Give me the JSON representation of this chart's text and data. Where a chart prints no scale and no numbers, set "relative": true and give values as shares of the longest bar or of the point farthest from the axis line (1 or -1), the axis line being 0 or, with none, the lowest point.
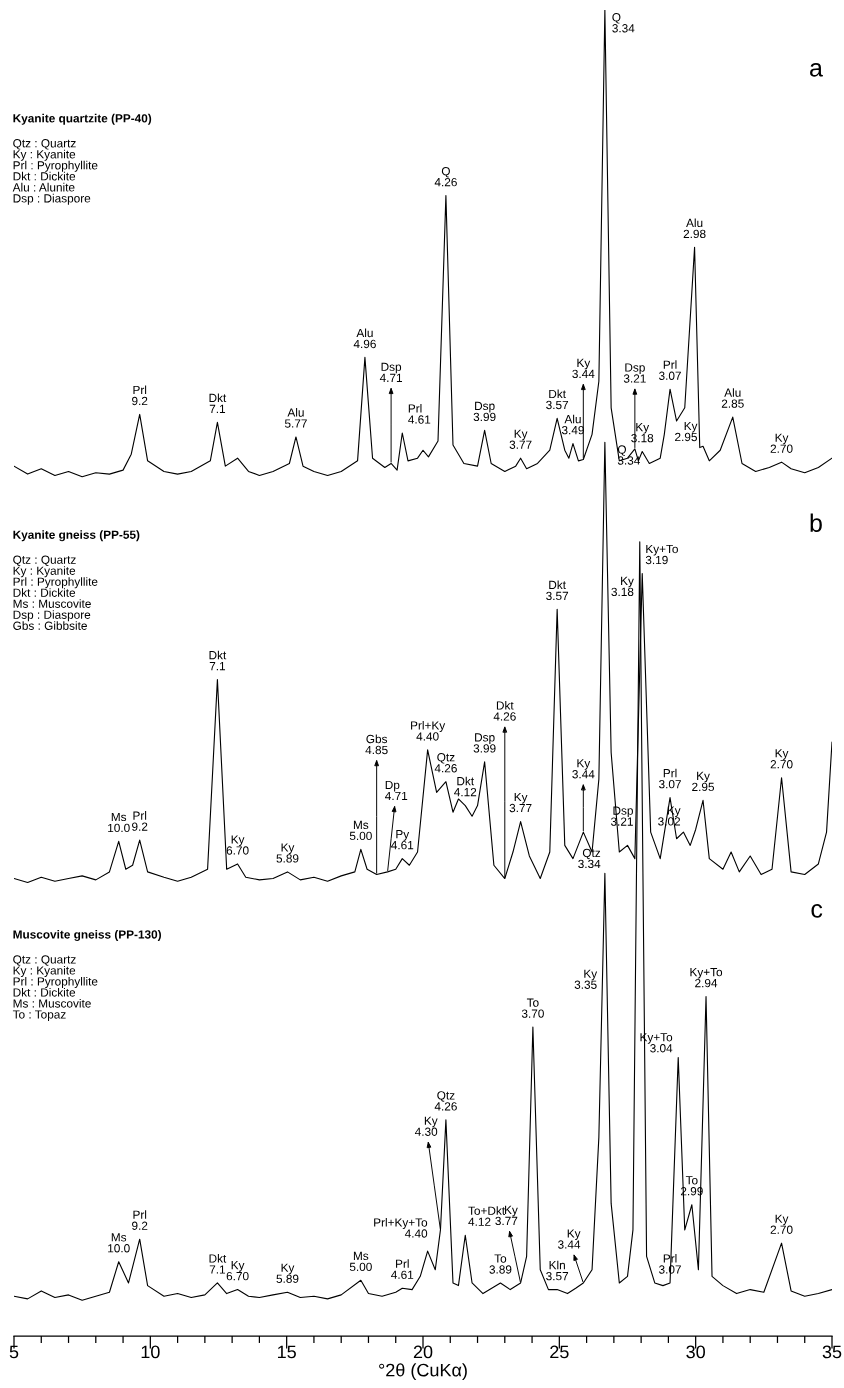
{
  "chart_data": {
    "type": "line",
    "relative": true,
    "xlabel": "°2θ (CuKα)",
    "xlim": [
      5,
      35
    ],
    "xticks": [
      5,
      {
        "value": 6,
        "label": null
      },
      {
        "value": 7,
        "label": null
      },
      {
        "value": 8,
        "label": null
      },
      {
        "value": 9,
        "label": null
      },
      10,
      {
        "value": 11,
        "label": null
      },
      {
        "value": 12,
        "label": null
      },
      {
        "value": 13,
        "label": null
      },
      {
        "value": 14,
        "label": null
      },
      15,
      {
        "value": 16,
        "label": null
      },
      {
        "value": 17,
        "label": null
      },
      {
        "value": 18,
        "label": null
      },
      {
        "value": 19,
        "label": null
      },
      20,
      {
        "value": 21,
        "label": null
      },
      {
        "value": 22,
        "label": null
      },
      {
        "value": 23,
        "label": null
      },
      {
        "value": 24,
        "label": null
      },
      25,
      {
        "value": 26,
        "label": null
      },
      {
        "value": 27,
        "label": null
      },
      {
        "value": 28,
        "label": null
      },
      {
        "value": 29,
        "label": null
      },
      30,
      {
        "value": 31,
        "label": null
      },
      {
        "value": 32,
        "label": null
      },
      {
        "value": 33,
        "label": null
      },
      {
        "value": 34,
        "label": null
      },
      35
    ],
    "series": [
      {
        "color": "#000000",
        "x": [
          5,
          5.5,
          6,
          6.5,
          7,
          7.5,
          8,
          8.5,
          9,
          9.3,
          9.61,
          9.9,
          10.5,
          11,
          11.5,
          12.2,
          12.46,
          12.75,
          13.2,
          13.6,
          14,
          14.5,
          15.1,
          15.34,
          15.6,
          16,
          16.5,
          17,
          17.6,
          17.87,
          18.15,
          18.6,
          18.83,
          19.05,
          19.24,
          19.45,
          19.8,
          20.0,
          20.2,
          20.55,
          20.84,
          21.1,
          21.5,
          22.0,
          22.26,
          22.5,
          23,
          23.4,
          23.58,
          23.8,
          24.2,
          24.65,
          24.92,
          25.2,
          25.35,
          25.5,
          25.7,
          25.88,
          26.2,
          26.45,
          26.67,
          26.9,
          27.2,
          27.5,
          27.77,
          27.9,
          28.04,
          28.3,
          28.7,
          28.85,
          29.06,
          29.3,
          29.6,
          29.96,
          30.15,
          30.27,
          30.5,
          30.9,
          31.36,
          31.7,
          32.2,
          32.7,
          33.15,
          33.5,
          34,
          34.5,
          35
        ],
        "values": [
          0.656,
          0.65,
          0.654,
          0.649,
          0.652,
          0.648,
          0.651,
          0.65,
          0.653,
          0.665,
          0.695,
          0.66,
          0.652,
          0.65,
          0.652,
          0.66,
          0.689,
          0.656,
          0.662,
          0.652,
          0.649,
          0.652,
          0.658,
          0.678,
          0.656,
          0.652,
          0.649,
          0.652,
          0.66,
          0.738,
          0.662,
          0.655,
          0.658,
          0.653,
          0.681,
          0.66,
          0.662,
          0.668,
          0.663,
          0.675,
          0.86,
          0.672,
          0.658,
          0.656,
          0.683,
          0.658,
          0.652,
          0.656,
          0.662,
          0.654,
          0.658,
          0.668,
          0.692,
          0.668,
          0.662,
          0.673,
          0.66,
          0.661,
          0.68,
          0.72,
          1.0,
          0.7,
          0.66,
          0.662,
          0.669,
          0.66,
          0.667,
          0.658,
          0.662,
          0.68,
          0.714,
          0.69,
          0.7,
          0.821,
          0.67,
          0.671,
          0.66,
          0.668,
          0.693,
          0.658,
          0.652,
          0.655,
          0.659,
          0.654,
          0.651,
          0.655,
          0.662
        ]
      },
      {
        "color": "#000000",
        "x": [
          5,
          5.5,
          6,
          6.5,
          7,
          7.5,
          8,
          8.5,
          8.84,
          9.1,
          9.35,
          9.61,
          9.9,
          10.5,
          11,
          11.5,
          12.1,
          12.46,
          12.8,
          13.2,
          13.5,
          14,
          14.5,
          15.03,
          15.5,
          16,
          16.5,
          17,
          17.5,
          17.72,
          17.95,
          18.3,
          18.7,
          19.0,
          19.24,
          19.5,
          19.8,
          20.17,
          20.5,
          20.84,
          21.1,
          21.3,
          21.55,
          21.8,
          22.0,
          22.26,
          22.6,
          23.0,
          23.3,
          23.58,
          23.9,
          24.3,
          24.65,
          24.92,
          25.2,
          25.5,
          25.88,
          26.2,
          26.45,
          26.67,
          26.9,
          27.2,
          27.5,
          27.77,
          28.04,
          28.35,
          28.7,
          29.06,
          29.3,
          29.55,
          29.8,
          30.0,
          30.27,
          30.5,
          31.0,
          31.3,
          31.6,
          32.0,
          32.4,
          32.8,
          33.15,
          33.5,
          34,
          34.5,
          34.8,
          35
        ],
        "values": [
          0.345,
          0.342,
          0.346,
          0.343,
          0.345,
          0.347,
          0.344,
          0.35,
          0.373,
          0.352,
          0.355,
          0.374,
          0.35,
          0.346,
          0.343,
          0.346,
          0.352,
          0.495,
          0.352,
          0.356,
          0.346,
          0.344,
          0.345,
          0.35,
          0.344,
          0.346,
          0.343,
          0.347,
          0.35,
          0.367,
          0.352,
          0.348,
          0.35,
          0.352,
          0.36,
          0.355,
          0.365,
          0.442,
          0.41,
          0.418,
          0.395,
          0.405,
          0.4,
          0.392,
          0.4,
          0.433,
          0.355,
          0.345,
          0.365,
          0.388,
          0.362,
          0.345,
          0.365,
          0.548,
          0.37,
          0.36,
          0.38,
          0.365,
          0.42,
          0.674,
          0.44,
          0.365,
          0.37,
          0.36,
          0.575,
          0.38,
          0.36,
          0.406,
          0.375,
          0.38,
          0.37,
          0.382,
          0.404,
          0.36,
          0.352,
          0.365,
          0.35,
          0.362,
          0.348,
          0.352,
          0.421,
          0.35,
          0.348,
          0.356,
          0.38,
          0.448
        ]
      },
      {
        "color": "#000000",
        "x": [
          5,
          5.5,
          6,
          6.5,
          7,
          7.5,
          8,
          8.5,
          8.84,
          9.2,
          9.61,
          9.9,
          10.5,
          11,
          11.5,
          12,
          12.46,
          12.8,
          13.2,
          13.6,
          14,
          14.5,
          15.03,
          15.5,
          16,
          16.5,
          17,
          17.72,
          18,
          18.5,
          19,
          19.24,
          19.6,
          19.9,
          20.17,
          20.45,
          20.64,
          20.84,
          21.1,
          21.3,
          21.55,
          21.8,
          22.2,
          22.84,
          23.2,
          23.58,
          23.8,
          24.03,
          24.3,
          24.6,
          24.92,
          25.3,
          25.6,
          25.88,
          26.2,
          26.45,
          26.67,
          26.9,
          27.2,
          27.5,
          27.7,
          27.95,
          28.2,
          28.5,
          28.8,
          29.06,
          29.36,
          29.6,
          29.86,
          30.1,
          30.38,
          30.6,
          31,
          31.5,
          32,
          32.5,
          33.15,
          33.5,
          34,
          34.5,
          35
        ],
        "values": [
          0.03,
          0.028,
          0.034,
          0.029,
          0.031,
          0.027,
          0.03,
          0.033,
          0.056,
          0.04,
          0.073,
          0.038,
          0.03,
          0.032,
          0.029,
          0.031,
          0.04,
          0.032,
          0.035,
          0.03,
          0.029,
          0.031,
          0.033,
          0.029,
          0.03,
          0.028,
          0.031,
          0.042,
          0.032,
          0.03,
          0.033,
          0.036,
          0.035,
          0.045,
          0.064,
          0.05,
          0.08,
          0.163,
          0.04,
          0.038,
          0.076,
          0.04,
          0.032,
          0.04,
          0.035,
          0.04,
          0.06,
          0.233,
          0.05,
          0.035,
          0.035,
          0.032,
          0.036,
          0.04,
          0.05,
          0.15,
          0.349,
          0.1,
          0.04,
          0.045,
          0.08,
          0.599,
          0.06,
          0.04,
          0.038,
          0.04,
          0.21,
          0.08,
          0.099,
          0.05,
          0.256,
          0.045,
          0.038,
          0.032,
          0.035,
          0.033,
          0.07,
          0.034,
          0.03,
          0.032,
          0.035
        ]
      }
    ],
    "annotations": [
      "a",
      "Kyanite quartzite (PP-40)",
      "Qtz : Quartz\nKy : Kyanite\nPrl : Pyrophyllite\nDkt : Dickite\nAlu : Alunite\nDsp : Diaspore",
      "b",
      "Kyanite gneiss (PP-55)",
      "Qtz : Quartz\nKy : Kyanite\nPrl : Pyrophyllite\nDkt : Dickite\nMs : Muscovite\nDsp : Diaspore\nGbs : Gibbsite",
      "c",
      "Muscovite gneiss (PP-130)",
      "Qtz : Quartz\nKy : Kyanite\nPrl : Pyrophyllite\nDkt : Dickite\nMs : Muscovite\nTo : Topaz",
      {
        "text": "Prl\n9.2",
        "x": 9.61,
        "y": 0.695
      },
      {
        "text": "Dkt\n7.1",
        "x": 12.46,
        "y": 0.689
      },
      {
        "text": "Alu\n5.77",
        "x": 15.34,
        "y": 0.678
      },
      {
        "text": "Alu\n4.96",
        "x": 17.87,
        "y": 0.738
      },
      {
        "text": "Dsp\n4.71",
        "x": 18.83,
        "y": 0.658
      },
      {
        "text": "Prl\n4.61",
        "x": 19.24,
        "y": 0.681
      },
      {
        "text": "Q\n4.26",
        "x": 20.84,
        "y": 0.86
      },
      {
        "text": "Dsp\n3.99",
        "x": 22.26,
        "y": 0.683
      },
      {
        "text": "Ky\n3.77",
        "x": 23.58,
        "y": 0.662
      },
      {
        "text": "Dkt\n3.57",
        "x": 24.92,
        "y": 0.692
      },
      {
        "text": "Alu\n3.49",
        "x": 25.5,
        "y": 0.673
      },
      {
        "text": "Ky\n3.44",
        "x": 25.88,
        "y": 0.661
      },
      {
        "text": "Q\n3.34",
        "x": 26.67,
        "y": 1.0
      },
      {
        "text": "Dsp\n3.21",
        "x": 27.77,
        "y": 0.669
      },
      {
        "text": "Ky\n3.18",
        "x": 28.04,
        "y": 0.667
      },
      {
        "text": "Prl\n3.07",
        "x": 29.06,
        "y": 0.714
      },
      {
        "text": "Alu\n2.98",
        "x": 29.96,
        "y": 0.821
      },
      {
        "text": "Ky\n2.95",
        "x": 30.27,
        "y": 0.671
      },
      {
        "text": "Alu\n2.85",
        "x": 31.36,
        "y": 0.693
      },
      {
        "text": "Ky\n2.70",
        "x": 33.15,
        "y": 0.659
      },
      {
        "text": "Ms\n10.0",
        "x": 8.84,
        "y": 0.373
      },
      {
        "text": "Prl\n9.2",
        "x": 9.61,
        "y": 0.374
      },
      {
        "text": "Dkt\n7.1",
        "x": 12.46,
        "y": 0.495
      },
      {
        "text": "Ky\n6.70",
        "x": 13.2,
        "y": 0.356
      },
      {
        "text": "Ky\n5.89",
        "x": 15.03,
        "y": 0.35
      },
      {
        "text": "Ms\n5.00",
        "x": 17.72,
        "y": 0.367
      },
      {
        "text": "Gbs\n4.85",
        "x": 18.3,
        "y": 0.348
      },
      {
        "text": "Dp\n4.71",
        "x": 18.7,
        "y": 0.35
      },
      {
        "text": "Py\n4.61",
        "x": 19.24,
        "y": 0.36
      },
      {
        "text": "Prl+Ky\n4.40",
        "x": 20.17,
        "y": 0.442
      },
      {
        "text": "Qtz\n4.26",
        "x": 20.84,
        "y": 0.418
      },
      {
        "text": "Dkt\n4.12",
        "x": 21.55,
        "y": 0.4
      },
      {
        "text": "Dsp\n3.99",
        "x": 22.26,
        "y": 0.433
      },
      {
        "text": "Dkt\n4.26",
        "x": 23.0,
        "y": 0.345
      },
      {
        "text": "Ky\n3.77",
        "x": 23.58,
        "y": 0.388
      },
      {
        "text": "Dkt\n3.57",
        "x": 24.92,
        "y": 0.548
      },
      {
        "text": "Ky\n3.44",
        "x": 25.88,
        "y": 0.38
      },
      {
        "text": "Q\n3.34",
        "x": 26.67,
        "y": 0.674
      },
      {
        "text": "Dsp\n3.21",
        "x": 27.77,
        "y": 0.36
      },
      {
        "text": "Ky\n3.18",
        "x": 28.04,
        "y": 0.575
      },
      {
        "text": "Prl\n3.07",
        "x": 29.06,
        "y": 0.406
      },
      {
        "text": "Ky\n3.02",
        "x": 29.55,
        "y": 0.38
      },
      {
        "text": "Ky\n2.95",
        "x": 30.27,
        "y": 0.404
      },
      {
        "text": "Ky\n2.70",
        "x": 33.15,
        "y": 0.421
      },
      {
        "text": "Ms\n10.0",
        "x": 8.84,
        "y": 0.056
      },
      {
        "text": "Prl\n9.2",
        "x": 9.61,
        "y": 0.073
      },
      {
        "text": "Dkt\n7.1",
        "x": 12.46,
        "y": 0.04
      },
      {
        "text": "Ky\n6.70",
        "x": 13.2,
        "y": 0.035
      },
      {
        "text": "Ky\n5.89",
        "x": 15.03,
        "y": 0.033
      },
      {
        "text": "Ms\n5.00",
        "x": 17.72,
        "y": 0.042
      },
      {
        "text": "Prl\n4.61",
        "x": 19.24,
        "y": 0.036
      },
      {
        "text": "Prl+Ky+To\n4.40",
        "x": 20.17,
        "y": 0.064
      },
      {
        "text": "Ky\n4.30",
        "x": 20.64,
        "y": 0.08
      },
      {
        "text": "Qtz\n4.26",
        "x": 20.84,
        "y": 0.163
      },
      {
        "text": "To+Dkt\n4.12",
        "x": 21.55,
        "y": 0.076
      },
      {
        "text": "To\n3.89",
        "x": 22.84,
        "y": 0.04
      },
      {
        "text": "Ky\n3.77",
        "x": 23.58,
        "y": 0.04
      },
      {
        "text": "To\n3.70",
        "x": 24.03,
        "y": 0.233
      },
      {
        "text": "Kln\n3.57",
        "x": 24.92,
        "y": 0.035
      },
      {
        "text": "Ky\n3.44",
        "x": 25.88,
        "y": 0.04
      },
      {
        "text": "Ky\n3.35",
        "x": 26.59,
        "y": 0.26
      },
      {
        "text": "Qtz\n3.34",
        "x": 26.67,
        "y": 0.349
      },
      {
        "text": "Ky+To\n3.19",
        "x": 27.95,
        "y": 0.599
      },
      {
        "text": "Prl\n3.07",
        "x": 29.06,
        "y": 0.04
      },
      {
        "text": "Ky+To\n3.04",
        "x": 29.36,
        "y": 0.21
      },
      {
        "text": "To\n2.99",
        "x": 29.86,
        "y": 0.099
      },
      {
        "text": "Ky+To\n2.94",
        "x": 30.38,
        "y": 0.256
      },
      {
        "text": "Ky\n2.70",
        "x": 33.15,
        "y": 0.07
      }
    ]
  }
}
